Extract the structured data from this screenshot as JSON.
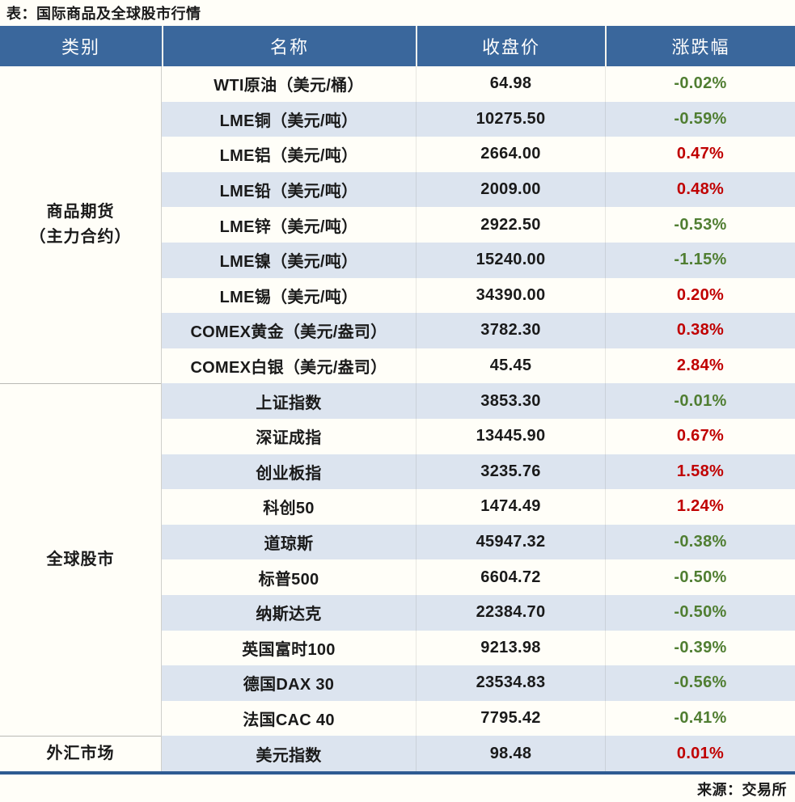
{
  "title": "表：国际商品及全球股市行情",
  "source": "来源：交易所",
  "colors": {
    "header_bg": "#3A679C",
    "row_bg": "#FFFEF8",
    "row_alt_bg": "#DCE4EF",
    "positive_red": "#C00000",
    "negative_green": "#507E32",
    "bottom_border": "#2E5B92"
  },
  "table": {
    "columns": [
      "类别",
      "名称",
      "收盘价",
      "涨跌幅"
    ],
    "categories": [
      {
        "label": "商品期货（主力合约）",
        "lines": [
          "商品期货",
          "（主力合约）"
        ],
        "rowspan": 9
      },
      {
        "label": "全球股市",
        "lines": [
          "全球股市"
        ],
        "rowspan": 10
      },
      {
        "label": "外汇市场",
        "lines": [
          "外汇市场"
        ],
        "rowspan": 1
      }
    ],
    "rows": [
      {
        "name": "WTI原油（美元/桶）",
        "close": "64.98",
        "change": "-0.02%"
      },
      {
        "name": "LME铜（美元/吨）",
        "close": "10275.50",
        "change": "-0.59%"
      },
      {
        "name": "LME铝（美元/吨）",
        "close": "2664.00",
        "change": "0.47%"
      },
      {
        "name": "LME铅（美元/吨）",
        "close": "2009.00",
        "change": "0.48%"
      },
      {
        "name": "LME锌（美元/吨）",
        "close": "2922.50",
        "change": "-0.53%"
      },
      {
        "name": "LME镍（美元/吨）",
        "close": "15240.00",
        "change": "-1.15%"
      },
      {
        "name": "LME锡（美元/吨）",
        "close": "34390.00",
        "change": "0.20%"
      },
      {
        "name": "COMEX黄金（美元/盎司）",
        "close": "3782.30",
        "change": "0.38%"
      },
      {
        "name": "COMEX白银（美元/盎司）",
        "close": "45.45",
        "change": "2.84%"
      },
      {
        "name": "上证指数",
        "close": "3853.30",
        "change": "-0.01%"
      },
      {
        "name": "深证成指",
        "close": "13445.90",
        "change": "0.67%"
      },
      {
        "name": "创业板指",
        "close": "3235.76",
        "change": "1.58%"
      },
      {
        "name": "科创50",
        "close": "1474.49",
        "change": "1.24%"
      },
      {
        "name": "道琼斯",
        "close": "45947.32",
        "change": "-0.38%"
      },
      {
        "name": "标普500",
        "close": "6604.72",
        "change": "-0.50%"
      },
      {
        "name": "纳斯达克",
        "close": "22384.70",
        "change": "-0.50%"
      },
      {
        "name": "英国富时100",
        "close": "9213.98",
        "change": "-0.39%"
      },
      {
        "name": "德国DAX 30",
        "close": "23534.83",
        "change": "-0.56%"
      },
      {
        "name": "法国CAC 40",
        "close": "7795.42",
        "change": "-0.41%"
      },
      {
        "name": "美元指数",
        "close": "98.48",
        "change": "0.01%"
      }
    ]
  },
  "chart_data": {
    "type": "table",
    "title": "表：国际商品及全球股市行情",
    "columns": [
      "类别",
      "名称",
      "收盘价",
      "涨跌幅"
    ],
    "rows": [
      [
        "商品期货（主力合约）",
        "WTI原油（美元/桶）",
        64.98,
        "-0.02%"
      ],
      [
        "商品期货（主力合约）",
        "LME铜（美元/吨）",
        10275.5,
        "-0.59%"
      ],
      [
        "商品期货（主力合约）",
        "LME铝（美元/吨）",
        2664.0,
        "0.47%"
      ],
      [
        "商品期货（主力合约）",
        "LME铅（美元/吨）",
        2009.0,
        "0.48%"
      ],
      [
        "商品期货（主力合约）",
        "LME锌（美元/吨）",
        2922.5,
        "-0.53%"
      ],
      [
        "商品期货（主力合约）",
        "LME镍（美元/吨）",
        15240.0,
        "-1.15%"
      ],
      [
        "商品期货（主力合约）",
        "LME锡（美元/吨）",
        34390.0,
        "0.20%"
      ],
      [
        "商品期货（主力合约）",
        "COMEX黄金（美元/盎司）",
        3782.3,
        "0.38%"
      ],
      [
        "商品期货（主力合约）",
        "COMEX白银（美元/盎司）",
        45.45,
        "2.84%"
      ],
      [
        "全球股市",
        "上证指数",
        3853.3,
        "-0.01%"
      ],
      [
        "全球股市",
        "深证成指",
        13445.9,
        "0.67%"
      ],
      [
        "全球股市",
        "创业板指",
        3235.76,
        "1.58%"
      ],
      [
        "全球股市",
        "科创50",
        1474.49,
        "1.24%"
      ],
      [
        "全球股市",
        "道琼斯",
        45947.32,
        "-0.38%"
      ],
      [
        "全球股市",
        "标普500",
        6604.72,
        "-0.50%"
      ],
      [
        "全球股市",
        "纳斯达克",
        22384.7,
        "-0.50%"
      ],
      [
        "全球股市",
        "英国富时100",
        9213.98,
        "-0.39%"
      ],
      [
        "全球股市",
        "德国DAX 30",
        23534.83,
        "-0.56%"
      ],
      [
        "全球股市",
        "法国CAC 40",
        7795.42,
        "-0.41%"
      ],
      [
        "外汇市场",
        "美元指数",
        98.48,
        "0.01%"
      ]
    ],
    "notes": "红色=上涨(正值)，绿色=下跌(负值)；来源：交易所"
  }
}
